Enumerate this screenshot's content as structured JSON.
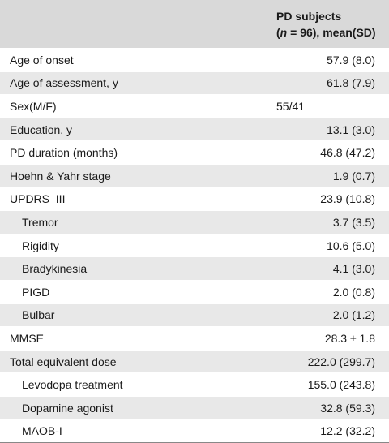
{
  "header": {
    "line1": "PD subjects",
    "n_open": "(",
    "n_italic": "n",
    "n_rest": " = 96), mean(SD)"
  },
  "rows": [
    {
      "label": "Age of onset",
      "value": "57.9 (8.0)"
    },
    {
      "label": "Age of assessment, y",
      "value": "61.8 (7.9)"
    },
    {
      "label": "Sex(M/F)",
      "value": "55/41"
    },
    {
      "label": "Education, y",
      "value": "13.1 (3.0)"
    },
    {
      "label": "PD duration (months)",
      "value": "46.8 (47.2)"
    },
    {
      "label": "Hoehn & Yahr stage",
      "value": "1.9 (0.7)"
    },
    {
      "label": "UPDRS–III",
      "value": "23.9 (10.8)"
    },
    {
      "label": "Tremor",
      "value": "3.7 (3.5)"
    },
    {
      "label": "Rigidity",
      "value": "10.6 (5.0)"
    },
    {
      "label": "Bradykinesia",
      "value": "4.1 (3.0)"
    },
    {
      "label": "PIGD",
      "value": "2.0 (0.8)"
    },
    {
      "label": "Bulbar",
      "value": "2.0 (1.2)"
    },
    {
      "label": "MMSE",
      "value": "28.3 ± 1.8"
    },
    {
      "label": "Total equivalent dose",
      "value": "222.0 (299.7)"
    },
    {
      "label": "Levodopa treatment",
      "value": "155.0 (243.8)"
    },
    {
      "label": "Dopamine agonist",
      "value": "32.8 (59.3)"
    },
    {
      "label": "MAOB-I",
      "value": "12.2 (32.2)"
    }
  ]
}
